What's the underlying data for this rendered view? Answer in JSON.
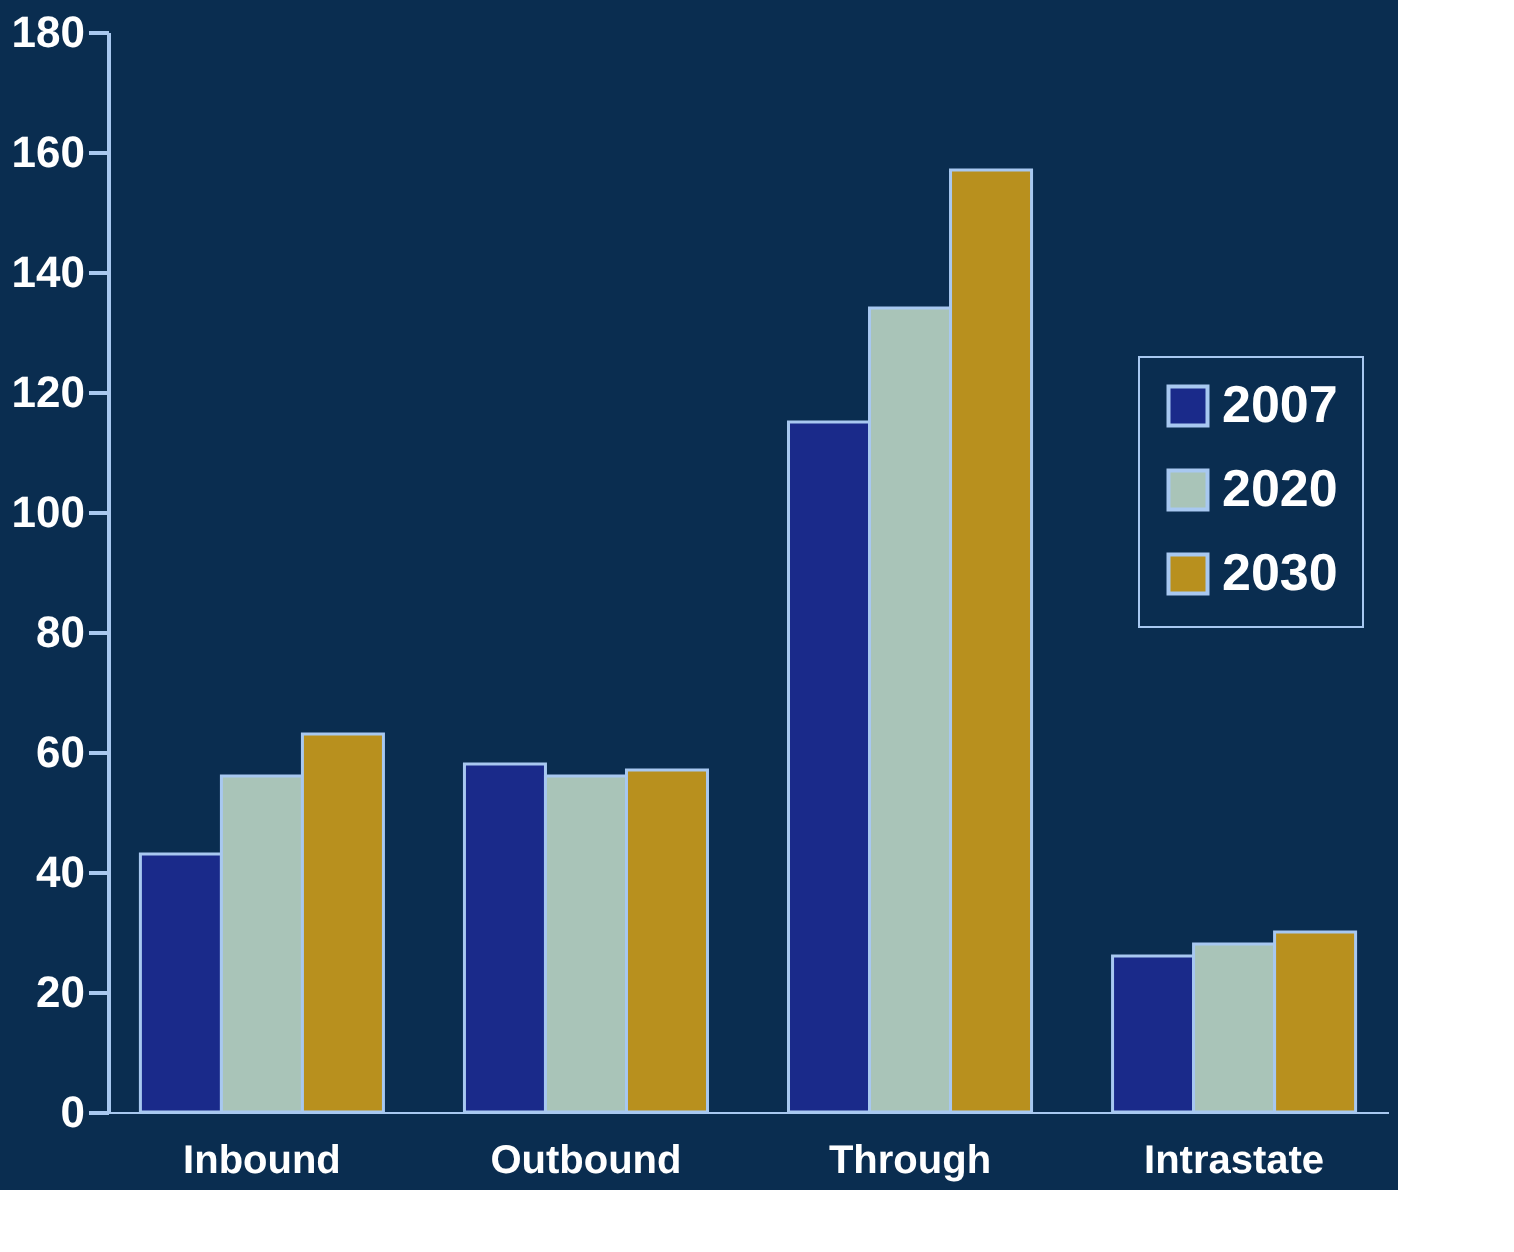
{
  "chart_data": {
    "type": "bar",
    "categories": [
      "Inbound",
      "Outbound",
      "Through",
      "Intrastate"
    ],
    "series": [
      {
        "name": "2007",
        "color": "#1a2a8a",
        "values": [
          43,
          58,
          115,
          26
        ]
      },
      {
        "name": "2020",
        "color": "#a9c4b8",
        "values": [
          56,
          56,
          134,
          28
        ]
      },
      {
        "name": "2030",
        "color": "#b8901e",
        "values": [
          63,
          57,
          157,
          30
        ]
      }
    ],
    "ylim": [
      0,
      180
    ],
    "yticks": [
      0,
      20,
      40,
      60,
      80,
      100,
      120,
      140,
      160,
      180
    ],
    "grid": false,
    "legend": "right"
  }
}
